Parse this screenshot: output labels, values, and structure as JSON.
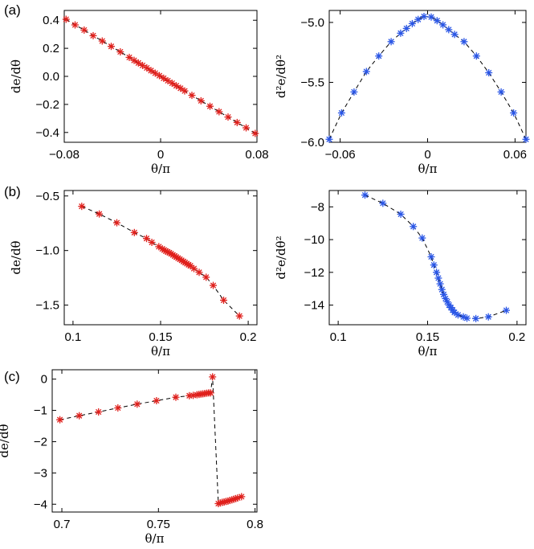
{
  "panel_labels": [
    "(a)",
    "(b)",
    "(c)"
  ],
  "chart_data": [
    {
      "type": "scatter",
      "panel": "(a)",
      "series": [
        {
          "name": "de/dθ",
          "color": "#e0201c",
          "marker": "asterisk",
          "fit_line": "dashed",
          "x": [
            -0.0785,
            -0.071,
            -0.0635,
            -0.056,
            -0.0485,
            -0.041,
            -0.0335,
            -0.026,
            -0.022,
            -0.0185,
            -0.015,
            -0.0115,
            -0.008,
            -0.0045,
            -0.001,
            0.0025,
            0.006,
            0.0095,
            0.013,
            0.0165,
            0.02,
            0.026,
            0.0335,
            0.041,
            0.0485,
            0.056,
            0.0635,
            0.071,
            0.0785
          ],
          "y": [
            0.407,
            0.367,
            0.33,
            0.29,
            0.252,
            0.214,
            0.175,
            0.135,
            0.114,
            0.096,
            0.078,
            0.06,
            0.041,
            0.023,
            0.005,
            -0.013,
            -0.031,
            -0.049,
            -0.067,
            -0.085,
            -0.104,
            -0.135,
            -0.174,
            -0.213,
            -0.252,
            -0.29,
            -0.329,
            -0.367,
            -0.407
          ]
        }
      ],
      "xlabel": "θ/π",
      "ylabel": "de/dθ",
      "xlim": [
        -0.08,
        0.08
      ],
      "ylim": [
        -0.47,
        0.47
      ],
      "xticks": [
        -0.08,
        0,
        0.08
      ],
      "xtick_labels": [
        "−0.08",
        "0",
        "0.08"
      ],
      "yticks": [
        0.4,
        0.2,
        0.0,
        -0.2,
        -0.4
      ],
      "ytick_labels": [
        "0.4",
        "0.2",
        "0.0",
        "−0.2",
        "−0.4"
      ]
    },
    {
      "type": "scatter",
      "panel": "(a)",
      "series": [
        {
          "name": "d²e/dθ²",
          "color": "#2a56e6",
          "marker": "asterisk",
          "fit_line": "dashed",
          "x": [
            -0.0675,
            -0.059,
            -0.0505,
            -0.042,
            -0.0335,
            -0.025,
            -0.0185,
            -0.0145,
            -0.0105,
            -0.0065,
            -0.0025,
            0.0025,
            0.0065,
            0.0105,
            0.0145,
            0.0185,
            0.025,
            0.0335,
            0.042,
            0.0505,
            0.059,
            0.0675
          ],
          "y": [
            -5.975,
            -5.755,
            -5.58,
            -5.41,
            -5.28,
            -5.16,
            -5.09,
            -5.05,
            -5.01,
            -4.975,
            -4.95,
            -4.955,
            -4.985,
            -5.02,
            -5.06,
            -5.1,
            -5.16,
            -5.28,
            -5.42,
            -5.58,
            -5.755,
            -5.975
          ]
        }
      ],
      "xlabel": "θ/π",
      "ylabel": "d²e/dθ²",
      "xlim": [
        -0.0675,
        0.0675
      ],
      "ylim": [
        -6.0,
        -4.9
      ],
      "xticks": [
        -0.06,
        0,
        0.06
      ],
      "xtick_labels": [
        "−0.06",
        "0",
        "0.06"
      ],
      "yticks": [
        -5.0,
        -5.5,
        -6.0
      ],
      "ytick_labels": [
        "−5.0",
        "−5.5",
        "−6.0"
      ]
    },
    {
      "type": "scatter",
      "panel": "(b)",
      "series": [
        {
          "name": "de/dθ",
          "color": "#e0201c",
          "marker": "asterisk",
          "fit_line": "dashed",
          "x": [
            0.105,
            0.115,
            0.125,
            0.135,
            0.142,
            0.145,
            0.149,
            0.151,
            0.152,
            0.153,
            0.154,
            0.155,
            0.156,
            0.157,
            0.158,
            0.159,
            0.16,
            0.161,
            0.162,
            0.163,
            0.164,
            0.165,
            0.166,
            0.167,
            0.169,
            0.172,
            0.176,
            0.18,
            0.186,
            0.195
          ],
          "y": [
            -0.595,
            -0.665,
            -0.745,
            -0.835,
            -0.89,
            -0.925,
            -0.965,
            -0.985,
            -0.995,
            -1.005,
            -1.012,
            -1.02,
            -1.03,
            -1.04,
            -1.05,
            -1.06,
            -1.07,
            -1.08,
            -1.09,
            -1.1,
            -1.11,
            -1.12,
            -1.13,
            -1.14,
            -1.165,
            -1.2,
            -1.245,
            -1.32,
            -1.455,
            -1.6
          ]
        }
      ],
      "xlabel": "θ/π",
      "ylabel": "de/dθ",
      "xlim": [
        0.095,
        0.205
      ],
      "ylim": [
        -1.68,
        -0.45
      ],
      "xticks": [
        0.1,
        0.15,
        0.2
      ],
      "xtick_labels": [
        "0.1",
        "0.15",
        "0.2"
      ],
      "yticks": [
        -0.5,
        -1.0,
        -1.5
      ],
      "ytick_labels": [
        "−0.5",
        "−1.0",
        "−1.5"
      ]
    },
    {
      "type": "scatter",
      "panel": "(b)",
      "series": [
        {
          "name": "d²e/dθ²",
          "color": "#2a56e6",
          "marker": "asterisk",
          "fit_line": "dashed",
          "x": [
            0.115,
            0.125,
            0.135,
            0.142,
            0.147,
            0.152,
            0.1535,
            0.155,
            0.156,
            0.157,
            0.158,
            0.159,
            0.16,
            0.161,
            0.162,
            0.163,
            0.164,
            0.165,
            0.167,
            0.17,
            0.172,
            0.177,
            0.184,
            0.194
          ],
          "y": [
            -7.28,
            -7.78,
            -8.45,
            -9.2,
            -9.9,
            -11.05,
            -11.55,
            -12.0,
            -12.35,
            -12.7,
            -13.05,
            -13.35,
            -13.6,
            -13.8,
            -14.0,
            -14.15,
            -14.3,
            -14.45,
            -14.6,
            -14.72,
            -14.8,
            -14.82,
            -14.72,
            -14.32
          ]
        }
      ],
      "xlabel": "θ/π",
      "ylabel": "d²e/dθ²",
      "xlim": [
        0.095,
        0.205
      ],
      "ylim": [
        -15.2,
        -7.0
      ],
      "xticks": [
        0.1,
        0.15,
        0.2
      ],
      "xtick_labels": [
        "0.1",
        "0.15",
        "0.2"
      ],
      "yticks": [
        -8,
        -10,
        -12,
        -14
      ],
      "ytick_labels": [
        "−8",
        "−10",
        "−12",
        "−14"
      ]
    },
    {
      "type": "scatter",
      "panel": "(c)",
      "series": [
        {
          "name": "de/dθ",
          "color": "#e0201c",
          "marker": "asterisk",
          "fit_line": "dashed",
          "x": [
            0.699,
            0.709,
            0.719,
            0.729,
            0.739,
            0.749,
            0.759,
            0.766,
            0.768,
            0.77,
            0.771,
            0.772,
            0.773,
            0.774,
            0.775,
            0.776,
            0.777,
            0.778,
            0.781,
            0.782,
            0.783,
            0.784,
            0.785,
            0.786,
            0.787,
            0.788,
            0.789,
            0.79,
            0.791,
            0.793
          ],
          "y": [
            -1.3,
            -1.17,
            -1.05,
            -0.92,
            -0.8,
            -0.69,
            -0.58,
            -0.53,
            -0.52,
            -0.5,
            -0.49,
            -0.48,
            -0.47,
            -0.46,
            -0.45,
            -0.44,
            -0.44,
            0.07,
            -3.98,
            -3.96,
            -3.94,
            -3.93,
            -3.91,
            -3.9,
            -3.88,
            -3.86,
            -3.84,
            -3.82,
            -3.8,
            -3.76
          ]
        }
      ],
      "xlabel": "θ/π",
      "ylabel": "de/dθ",
      "xlim": [
        0.695,
        0.801
      ],
      "ylim": [
        -4.25,
        0.3
      ],
      "xticks": [
        0.7,
        0.75,
        0.8
      ],
      "xtick_labels": [
        "0.7",
        "0.75",
        "0.8"
      ],
      "yticks": [
        0,
        -1,
        -2,
        -3,
        -4
      ],
      "ytick_labels": [
        "0",
        "−1",
        "−2",
        "−3",
        "−4"
      ]
    }
  ]
}
